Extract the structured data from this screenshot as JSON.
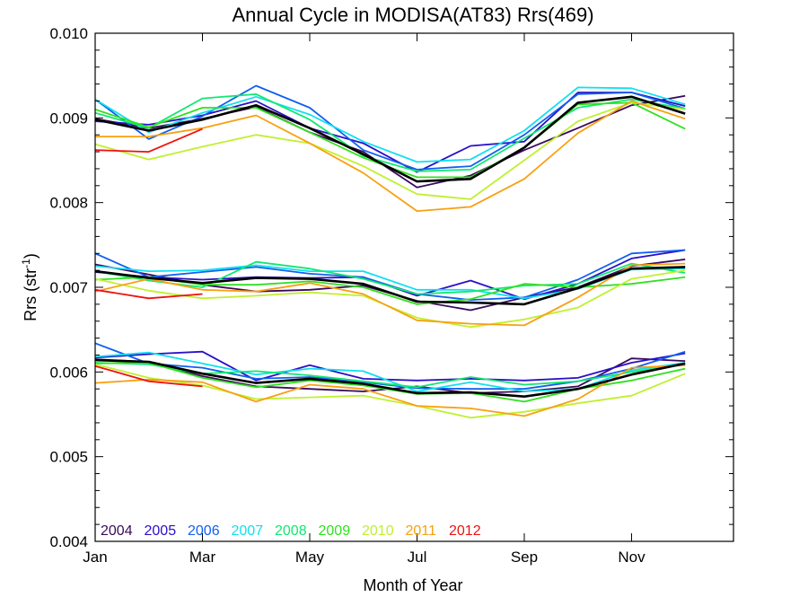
{
  "chart_data": {
    "type": "line",
    "title": "Annual Cycle in MODISA(AT83) Rrs(469)",
    "xlabel": "Month of Year",
    "ylabel_main": "Rrs (str",
    "ylabel_sup": "-1",
    "ylabel_close": ")",
    "xlim": [
      1,
      12.9
    ],
    "ylim": [
      0.004,
      0.01
    ],
    "x_ticks": [
      {
        "value": 1,
        "label": "Jan"
      },
      {
        "value": 3,
        "label": "Mar"
      },
      {
        "value": 5,
        "label": "May"
      },
      {
        "value": 7,
        "label": "Jul"
      },
      {
        "value": 9,
        "label": "Sep"
      },
      {
        "value": 11,
        "label": "Nov"
      }
    ],
    "y_ticks": [
      {
        "value": 0.004,
        "label": "0.004"
      },
      {
        "value": 0.005,
        "label": "0.005"
      },
      {
        "value": 0.006,
        "label": "0.006"
      },
      {
        "value": 0.007,
        "label": "0.007"
      },
      {
        "value": 0.008,
        "label": "0.008"
      },
      {
        "value": 0.009,
        "label": "0.009"
      },
      {
        "value": 0.01,
        "label": "0.010"
      }
    ],
    "legend_placement": "bottom-left",
    "x": [
      1,
      2,
      3,
      4,
      5,
      6,
      7,
      8,
      9,
      10,
      11,
      12
    ],
    "series": [
      {
        "name": "2004",
        "color": "#3a0a5c",
        "groups": [
          [
            0.00899,
            0.00888,
            0.00899,
            0.00913,
            0.00883,
            0.0086,
            0.00818,
            0.00832,
            0.00862,
            0.00888,
            0.00915,
            0.00926
          ],
          [
            0.00727,
            0.00715,
            0.00703,
            0.00695,
            0.00697,
            0.00702,
            0.00684,
            0.00673,
            0.00688,
            0.007,
            0.00725,
            0.00733
          ],
          [
            0.00615,
            0.00612,
            0.00595,
            0.00583,
            0.0058,
            0.00577,
            0.00583,
            0.00575,
            0.00577,
            0.00583,
            0.00616,
            0.00613
          ]
        ]
      },
      {
        "name": "2005",
        "color": "#2a10c8",
        "groups": [
          [
            0.00896,
            0.00892,
            0.00903,
            0.0092,
            0.00888,
            0.0087,
            0.00836,
            0.00867,
            0.00872,
            0.0093,
            0.0093,
            0.00914
          ],
          [
            0.00718,
            0.00712,
            0.00709,
            0.00712,
            0.00711,
            0.00712,
            0.0069,
            0.00708,
            0.00686,
            0.00704,
            0.00734,
            0.00744
          ],
          [
            0.00617,
            0.00621,
            0.00624,
            0.0059,
            0.00608,
            0.00592,
            0.0059,
            0.00592,
            0.0059,
            0.00593,
            0.00611,
            0.00622
          ]
        ]
      },
      {
        "name": "2006",
        "color": "#1060f0",
        "groups": [
          [
            0.00922,
            0.00875,
            0.00902,
            0.00938,
            0.00912,
            0.00862,
            0.00839,
            0.00843,
            0.0088,
            0.00928,
            0.0093,
            0.00911
          ],
          [
            0.0074,
            0.00712,
            0.00718,
            0.00724,
            0.00716,
            0.00712,
            0.00692,
            0.00685,
            0.00688,
            0.00709,
            0.0074,
            0.00744
          ],
          [
            0.00634,
            0.0061,
            0.00605,
            0.00592,
            0.00594,
            0.00588,
            0.00581,
            0.0058,
            0.0058,
            0.00589,
            0.00604,
            0.00624
          ]
        ]
      },
      {
        "name": "2007",
        "color": "#10e0f0",
        "groups": [
          [
            0.00922,
            0.00883,
            0.00906,
            0.00925,
            0.00904,
            0.00872,
            0.00848,
            0.00851,
            0.00885,
            0.00936,
            0.00935,
            0.00916
          ],
          [
            0.00725,
            0.00719,
            0.0072,
            0.00726,
            0.00719,
            0.00719,
            0.00697,
            0.00697,
            0.00687,
            0.00698,
            0.00721,
            0.00722
          ],
          [
            0.00618,
            0.00623,
            0.0061,
            0.00597,
            0.00604,
            0.00601,
            0.00577,
            0.00588,
            0.00577,
            0.0058,
            0.00602,
            0.00611
          ]
        ]
      },
      {
        "name": "2008",
        "color": "#10e870",
        "groups": [
          [
            0.00906,
            0.00888,
            0.00923,
            0.00928,
            0.00898,
            0.00855,
            0.00837,
            0.00839,
            0.00876,
            0.00912,
            0.00922,
            0.00911
          ],
          [
            0.00719,
            0.00708,
            0.007,
            0.0073,
            0.00722,
            0.0071,
            0.00692,
            0.00695,
            0.00702,
            0.00704,
            0.00728,
            0.00717
          ],
          [
            0.00611,
            0.00609,
            0.00598,
            0.00601,
            0.00596,
            0.00589,
            0.00582,
            0.00594,
            0.00585,
            0.00589,
            0.006,
            0.00609
          ]
        ]
      },
      {
        "name": "2009",
        "color": "#30e020",
        "groups": [
          [
            0.0091,
            0.00889,
            0.00912,
            0.00912,
            0.00883,
            0.00853,
            0.0083,
            0.0083,
            0.00865,
            0.00916,
            0.00918,
            0.00887
          ],
          [
            0.00709,
            0.00712,
            0.00703,
            0.00703,
            0.00707,
            0.007,
            0.0068,
            0.00686,
            0.00704,
            0.007,
            0.00704,
            0.00712
          ],
          [
            0.0061,
            0.00611,
            0.00593,
            0.00582,
            0.0059,
            0.00584,
            0.00574,
            0.00575,
            0.00565,
            0.0058,
            0.0059,
            0.00604
          ]
        ]
      },
      {
        "name": "2010",
        "color": "#c0f030",
        "groups": [
          [
            0.00869,
            0.00851,
            0.00866,
            0.0088,
            0.0087,
            0.00843,
            0.0081,
            0.00804,
            0.0085,
            0.00896,
            0.00918,
            0.0091
          ],
          [
            0.0071,
            0.00696,
            0.00687,
            0.0069,
            0.00694,
            0.0069,
            0.00664,
            0.00653,
            0.00662,
            0.00676,
            0.0071,
            0.0072
          ],
          [
            0.00609,
            0.00593,
            0.00584,
            0.00568,
            0.0057,
            0.00572,
            0.0056,
            0.00546,
            0.00553,
            0.00563,
            0.00572,
            0.00598
          ]
        ]
      },
      {
        "name": "2011",
        "color": "#f8a010",
        "groups": [
          [
            0.00878,
            0.00878,
            0.00888,
            0.00903,
            0.0087,
            0.00835,
            0.0079,
            0.00795,
            0.00828,
            0.00882,
            0.0092,
            0.00899
          ],
          [
            0.00695,
            0.0071,
            0.00697,
            0.00695,
            0.00705,
            0.00692,
            0.00661,
            0.00657,
            0.00655,
            0.00688,
            0.00726,
            0.00728
          ],
          [
            0.00587,
            0.00591,
            0.00588,
            0.00565,
            0.00585,
            0.0058,
            0.0056,
            0.00557,
            0.00548,
            0.00568,
            0.00605,
            0.00608
          ]
        ]
      },
      {
        "name": "2012",
        "color": "#f01010",
        "groups": [
          [
            0.00862,
            0.0086,
            0.00887
          ],
          [
            0.00697,
            0.00687,
            0.00692
          ],
          [
            0.00607,
            0.00589,
            0.00583
          ]
        ]
      },
      {
        "name": "",
        "color": "#000000",
        "mean": true,
        "groups": [
          [
            0.00898,
            0.00885,
            0.00898,
            0.00915,
            0.00888,
            0.00857,
            0.00825,
            0.00828,
            0.00865,
            0.00918,
            0.00925,
            0.00905
          ],
          [
            0.00719,
            0.00711,
            0.00705,
            0.00711,
            0.0071,
            0.00704,
            0.00683,
            0.00682,
            0.0068,
            0.00699,
            0.00722,
            0.00724
          ],
          [
            0.00614,
            0.00612,
            0.00598,
            0.00587,
            0.00592,
            0.00586,
            0.00575,
            0.00576,
            0.00571,
            0.0058,
            0.00597,
            0.0061
          ]
        ]
      }
    ]
  }
}
